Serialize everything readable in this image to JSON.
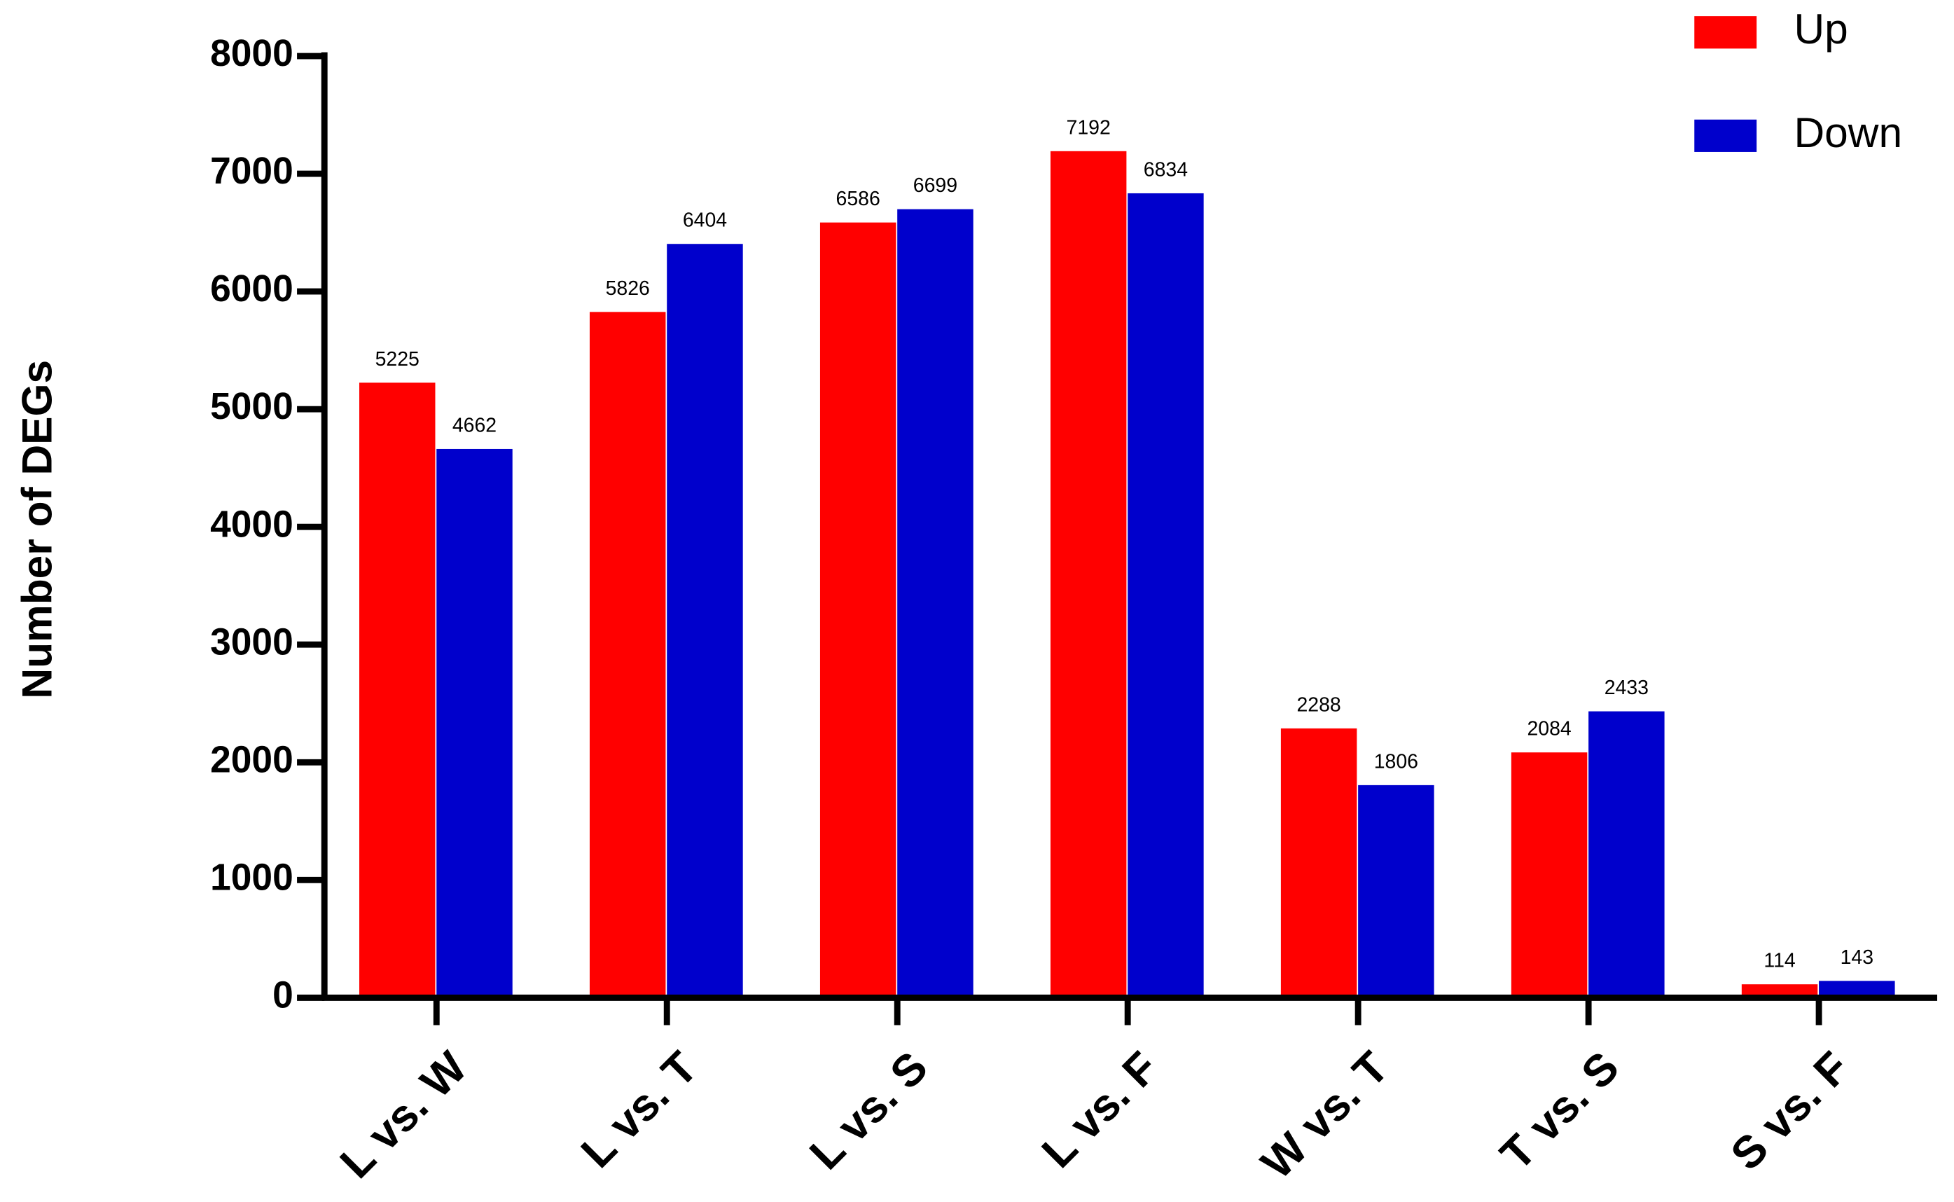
{
  "chart_data": {
    "type": "bar",
    "y_label": "Number of DEGs",
    "categories": [
      "L vs. W",
      "L vs. T",
      "L vs. S",
      "L vs. F",
      "W vs. T",
      "T vs. S",
      "S vs. F"
    ],
    "series": [
      {
        "name": "Up",
        "color": "#ff0000",
        "values": [
          5225,
          5826,
          6586,
          7192,
          2288,
          2084,
          114
        ]
      },
      {
        "name": "Down",
        "color": "#0000cc",
        "values": [
          4662,
          6404,
          6699,
          6834,
          1806,
          2433,
          143
        ]
      }
    ],
    "ylim": [
      0,
      8000
    ],
    "yticks": [
      0,
      1000,
      2000,
      3000,
      4000,
      5000,
      6000,
      7000,
      8000
    ],
    "legend": "upper right",
    "data_labels": true
  }
}
